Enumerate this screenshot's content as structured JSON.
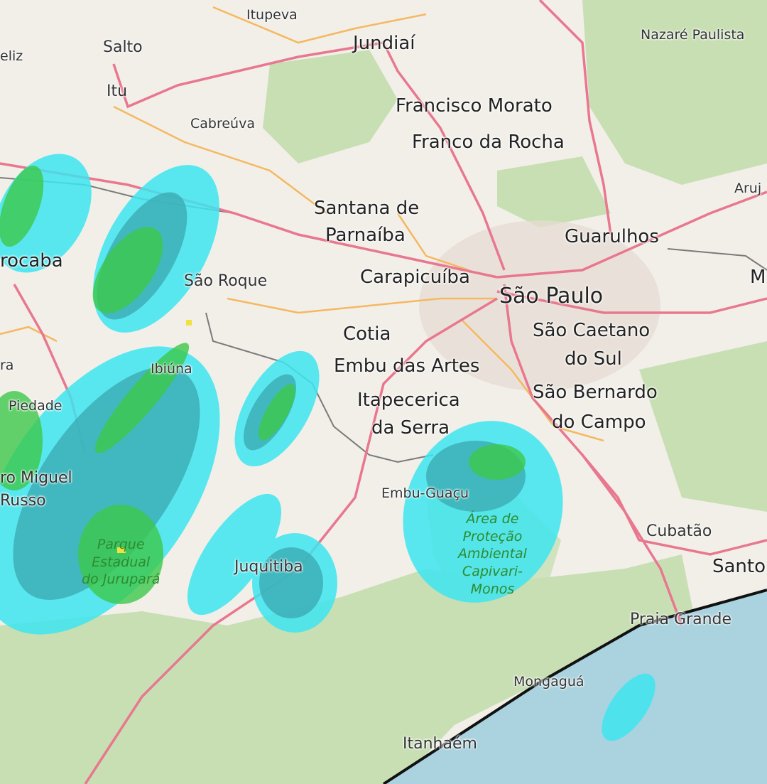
{
  "map": {
    "base_style": "street map",
    "overlay": "weather radar precipitation",
    "colors": {
      "land": "#f2efe9",
      "forest": "#c8dfb4",
      "ocean": "#aad3df",
      "major_road": "#e8778f",
      "secondary_road": "#f5b860",
      "boundary": "#7a7a7a",
      "coastline_track": "#111111",
      "radar_light": "#3ee6f0",
      "radar_mid": "#3aa8b0",
      "radar_heavy": "#3cc84a",
      "radar_peak": "#f0e040"
    },
    "places": {
      "eliz": "eliz",
      "salto": "Salto",
      "itupeva": "Itupeva",
      "jundiai": "Jundiaí",
      "nazare": "Nazaré Paulista",
      "itu": "Itu",
      "cabreuva": "Cabreúva",
      "francisco_morato": "Francisco Morato",
      "franco_da_rocha": "Franco da Rocha",
      "aruja": "Aruj",
      "santana_1": "Santana de",
      "santana_2": "Parnaíba",
      "guarulhos": "Guarulhos",
      "sorocaba": "rocaba",
      "sao_roque": "São Roque",
      "carapicuiba": "Carapicuíba",
      "sao_paulo": "São Paulo",
      "mogi": "M",
      "sao_caetano_1": "São Caetano",
      "sao_caetano_2": "do Sul",
      "cotia": "Cotia",
      "embu": "Embu das Artes",
      "ra": "ra",
      "ibiuna": "Ibiúna",
      "piedade": "Piedade",
      "itapecerica_1": "Itapecerica",
      "itapecerica_2": "da Serra",
      "sao_bernardo_1": "São Bernardo",
      "sao_bernardo_2": "do Campo",
      "pedro_1": "ro Miguel",
      "pedro_2": "Russo",
      "embu_guacu": "Embu-Guaçu",
      "juquitiba": "Juquitiba",
      "cubatao": "Cubatão",
      "santos": "Santo",
      "praia_grande": "Praia Grande",
      "mongagua": "Mongaguá",
      "itanhaem": "Itanhaém"
    },
    "parks": {
      "capivari": [
        "Área de",
        "Proteção",
        "Ambiental",
        "Capivari-",
        "Monos"
      ],
      "jurupara": [
        "Parque",
        "Estadual",
        "do Jurupará"
      ]
    }
  }
}
